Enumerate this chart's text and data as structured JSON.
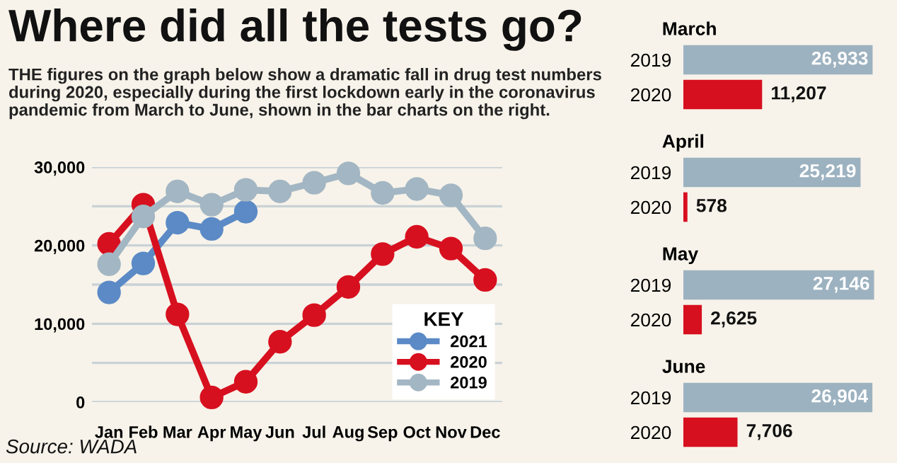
{
  "chart_data": [
    {
      "type": "line",
      "title": "Where did all the tests go?",
      "subtitle": "THE figures on the graph below show a dramatic fall in drug test numbers\nduring 2020, especially during the first lockdown early in the coronavirus\npandemic from March to June, shown in the bar charts on the right.",
      "annotations": [
        "Source: WADA"
      ],
      "categories": [
        "Jan",
        "Feb",
        "Mar",
        "Apr",
        "May",
        "Jun",
        "Jul",
        "Aug",
        "Sep",
        "Oct",
        "Nov",
        "Dec"
      ],
      "series": [
        {
          "name": "2021",
          "color": "#5b8ac6",
          "values": [
            14000,
            17700,
            22900,
            22100,
            24300,
            null,
            null,
            null,
            null,
            null,
            null,
            null
          ]
        },
        {
          "name": "2020",
          "color": "#d7101f",
          "values": [
            20200,
            25200,
            11200,
            600,
            2600,
            7700,
            11100,
            14700,
            18900,
            21100,
            19600,
            15600
          ]
        },
        {
          "name": "2019",
          "color": "#a3b6c3",
          "values": [
            17600,
            23700,
            26900,
            25200,
            27100,
            26900,
            28000,
            29200,
            26700,
            27200,
            26400,
            20900
          ]
        }
      ],
      "ylim": [
        0,
        30000
      ],
      "yticks": [
        0,
        {
          "value": 5000,
          "label": null
        },
        {
          "value": 10000,
          "label": "10,000"
        },
        {
          "value": 15000,
          "label": null
        },
        {
          "value": 20000,
          "label": "20,000"
        },
        {
          "value": 25000,
          "label": null
        },
        {
          "value": 30000,
          "label": "30,000"
        }
      ],
      "grid": "y",
      "marker": "circle",
      "line_style": "solid",
      "legend": "bottom right",
      "legend_title": "KEY"
    },
    {
      "type": "bar",
      "orientation": "horizontal",
      "title": "March",
      "categories": [
        "2019",
        "2020"
      ],
      "values": [
        26933,
        11207
      ],
      "value_labels": [
        "26,933",
        "11,207"
      ],
      "colors": [
        "#9db2c0",
        "#d7101f"
      ],
      "tick_labels": "y"
    },
    {
      "type": "bar",
      "orientation": "horizontal",
      "title": "April",
      "categories": [
        "2019",
        "2020"
      ],
      "values": [
        25219,
        578
      ],
      "value_labels": [
        "25,219",
        "578"
      ],
      "colors": [
        "#9db2c0",
        "#d7101f"
      ],
      "tick_labels": "y"
    },
    {
      "type": "bar",
      "orientation": "horizontal",
      "title": "May",
      "categories": [
        "2019",
        "2020"
      ],
      "values": [
        27146,
        2625
      ],
      "value_labels": [
        "27,146",
        "2,625"
      ],
      "colors": [
        "#9db2c0",
        "#d7101f"
      ],
      "tick_labels": "y"
    },
    {
      "type": "bar",
      "orientation": "horizontal",
      "title": "June",
      "categories": [
        "2019",
        "2020"
      ],
      "values": [
        26904,
        7706
      ],
      "value_labels": [
        "26,904",
        "7,706"
      ],
      "colors": [
        "#9db2c0",
        "#d7101f"
      ],
      "tick_labels": "y"
    }
  ]
}
